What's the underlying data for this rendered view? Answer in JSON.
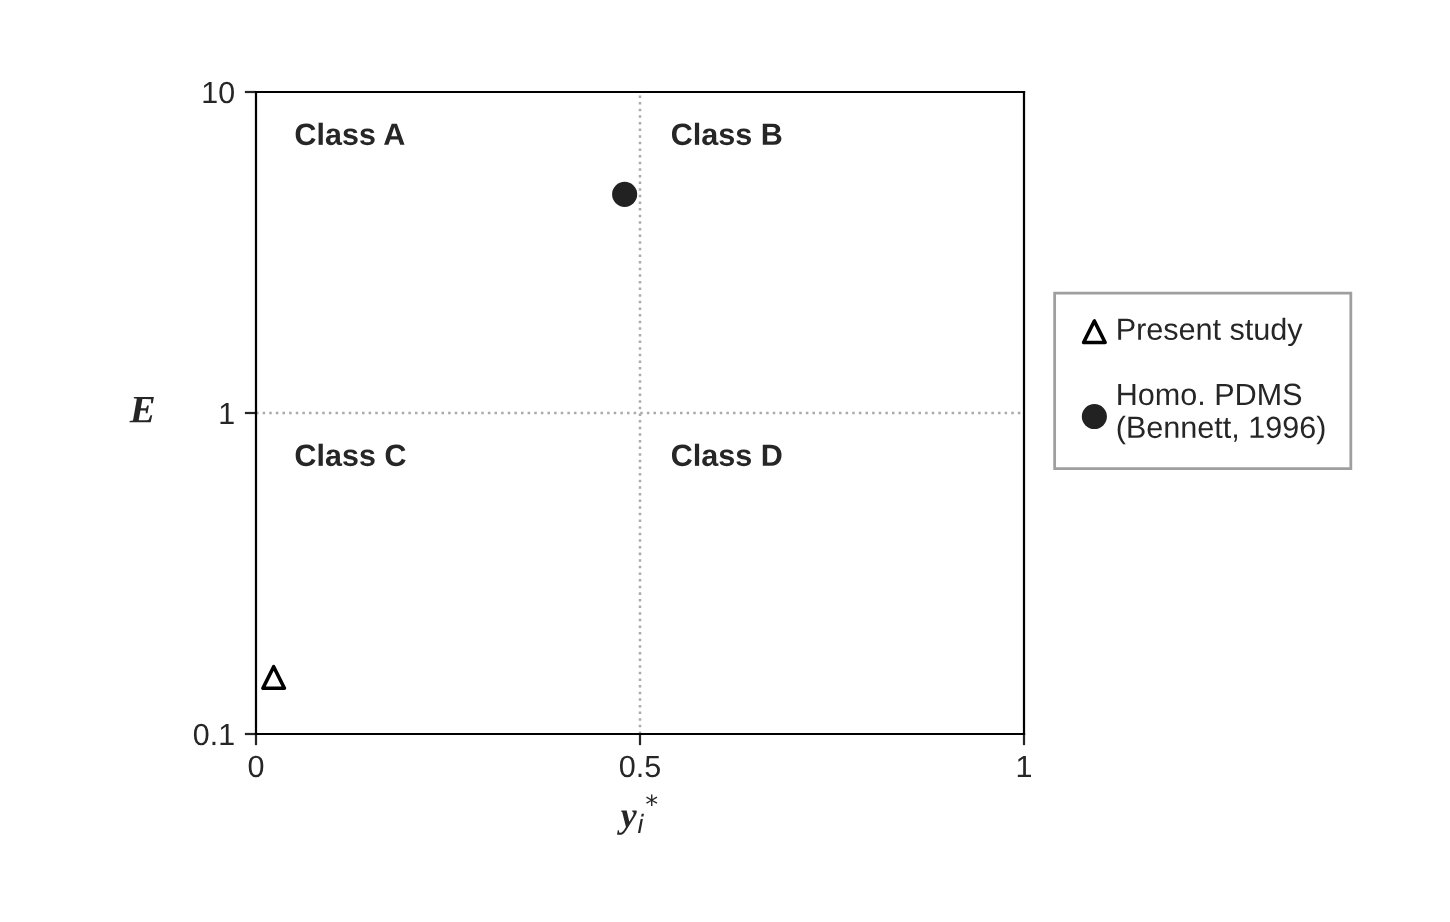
{
  "chart_data": {
    "type": "scatter",
    "xlabel": "y$_{i}$$^{*}$",
    "ylabel": "E",
    "series": [
      {
        "name": "Present study",
        "color": "#000000",
        "marker": "triangle",
        "x": [
          0.023
        ],
        "values": [
          0.15
        ]
      },
      {
        "name": "Homo. PDMS\n(Bennett, 1996)",
        "color": "#222222",
        "marker": "circle",
        "x": [
          0.48
        ],
        "values": [
          4.8
        ]
      }
    ],
    "log": "y",
    "xlim": [
      0,
      1
    ],
    "ylim": [
      0.1,
      10
    ],
    "xticks": [
      0,
      0.5,
      1
    ],
    "yticks": [
      0.1,
      1,
      10
    ],
    "ref_lines": [
      {
        "axis": "x",
        "value": 0.5,
        "color": "#aaaaaa",
        "line_style": "dotted"
      },
      {
        "axis": "y",
        "value": 1,
        "color": "#aaaaaa",
        "line_style": "dotted"
      }
    ],
    "annotations": [
      "Class A",
      "Class B",
      "Class C",
      "Class D"
    ],
    "grid": false,
    "legend": "right"
  }
}
